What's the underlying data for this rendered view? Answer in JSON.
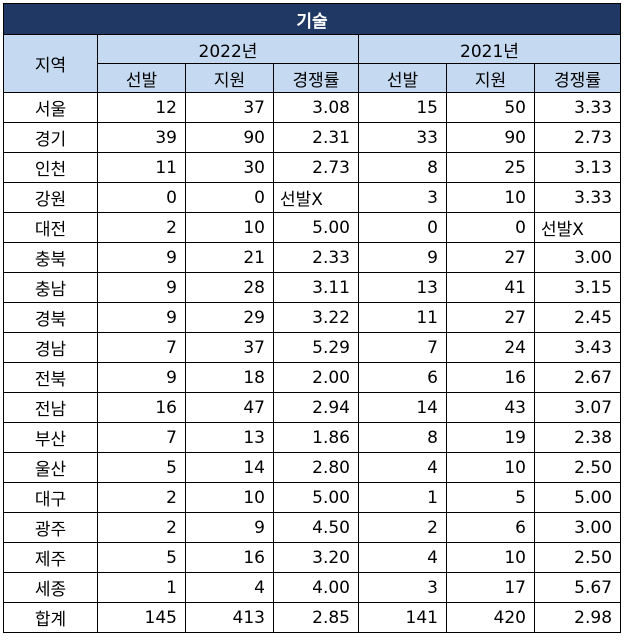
{
  "title": "기술",
  "header": {
    "region_label": "지역",
    "years": [
      "2022년",
      "2021년"
    ],
    "sub_labels": [
      "선발",
      "지원",
      "경쟁률"
    ]
  },
  "rows": [
    {
      "region": "서울",
      "y2022": [
        "12",
        "37",
        "3.08"
      ],
      "y2021": [
        "15",
        "50",
        "3.33"
      ]
    },
    {
      "region": "경기",
      "y2022": [
        "39",
        "90",
        "2.31"
      ],
      "y2021": [
        "33",
        "90",
        "2.73"
      ]
    },
    {
      "region": "인천",
      "y2022": [
        "11",
        "30",
        "2.73"
      ],
      "y2021": [
        "8",
        "25",
        "3.13"
      ]
    },
    {
      "region": "강원",
      "y2022": [
        "0",
        "0",
        "선발X"
      ],
      "y2021": [
        "3",
        "10",
        "3.33"
      ]
    },
    {
      "region": "대전",
      "y2022": [
        "2",
        "10",
        "5.00"
      ],
      "y2021": [
        "0",
        "0",
        "선발X"
      ]
    },
    {
      "region": "충북",
      "y2022": [
        "9",
        "21",
        "2.33"
      ],
      "y2021": [
        "9",
        "27",
        "3.00"
      ]
    },
    {
      "region": "충남",
      "y2022": [
        "9",
        "28",
        "3.11"
      ],
      "y2021": [
        "13",
        "41",
        "3.15"
      ]
    },
    {
      "region": "경북",
      "y2022": [
        "9",
        "29",
        "3.22"
      ],
      "y2021": [
        "11",
        "27",
        "2.45"
      ]
    },
    {
      "region": "경남",
      "y2022": [
        "7",
        "37",
        "5.29"
      ],
      "y2021": [
        "7",
        "24",
        "3.43"
      ]
    },
    {
      "region": "전북",
      "y2022": [
        "9",
        "18",
        "2.00"
      ],
      "y2021": [
        "6",
        "16",
        "2.67"
      ]
    },
    {
      "region": "전남",
      "y2022": [
        "16",
        "47",
        "2.94"
      ],
      "y2021": [
        "14",
        "43",
        "3.07"
      ]
    },
    {
      "region": "부산",
      "y2022": [
        "7",
        "13",
        "1.86"
      ],
      "y2021": [
        "8",
        "19",
        "2.38"
      ]
    },
    {
      "region": "울산",
      "y2022": [
        "5",
        "14",
        "2.80"
      ],
      "y2021": [
        "4",
        "10",
        "2.50"
      ]
    },
    {
      "region": "대구",
      "y2022": [
        "2",
        "10",
        "5.00"
      ],
      "y2021": [
        "1",
        "5",
        "5.00"
      ]
    },
    {
      "region": "광주",
      "y2022": [
        "2",
        "9",
        "4.50"
      ],
      "y2021": [
        "2",
        "6",
        "3.00"
      ]
    },
    {
      "region": "제주",
      "y2022": [
        "5",
        "16",
        "3.20"
      ],
      "y2021": [
        "4",
        "10",
        "2.50"
      ]
    },
    {
      "region": "세종",
      "y2022": [
        "1",
        "4",
        "4.00"
      ],
      "y2021": [
        "3",
        "17",
        "5.67"
      ]
    },
    {
      "region": "합계",
      "y2022": [
        "145",
        "413",
        "2.85"
      ],
      "y2021": [
        "141",
        "420",
        "2.98"
      ]
    }
  ],
  "colors": {
    "title_bg": "#1f3864",
    "header_bg": "#c5d9f1",
    "border": "#000000"
  }
}
